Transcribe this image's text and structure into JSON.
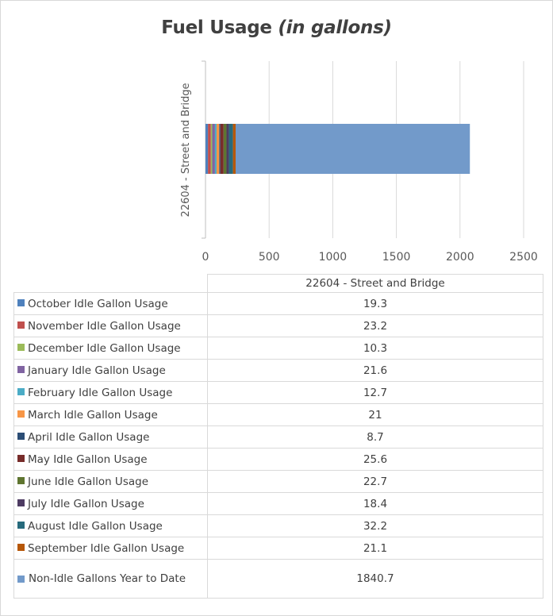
{
  "chart_data": {
    "type": "bar",
    "orientation": "horizontal",
    "stacked": true,
    "title": "Fuel Usage",
    "title_suffix": "(in gallons)",
    "categories": [
      "22604 - Street and Bridge"
    ],
    "xlim": [
      0,
      2500
    ],
    "xticks": [
      "0",
      "500",
      "1000",
      "1500",
      "2000",
      "2500"
    ],
    "grid": "vertical",
    "legend": "table-below",
    "series": [
      {
        "name": "October Idle Gallon Usage",
        "values": [
          19.3
        ],
        "value_label": "19.3",
        "color": "#4f81bd"
      },
      {
        "name": "November Idle Gallon Usage",
        "values": [
          23.2
        ],
        "value_label": "23.2",
        "color": "#c0504d"
      },
      {
        "name": "December Idle Gallon Usage",
        "values": [
          10.3
        ],
        "value_label": "10.3",
        "color": "#9bbb59"
      },
      {
        "name": "January Idle Gallon Usage",
        "values": [
          21.6
        ],
        "value_label": "21.6",
        "color": "#8064a2"
      },
      {
        "name": "February Idle Gallon Usage",
        "values": [
          12.7
        ],
        "value_label": "12.7",
        "color": "#4bacc6"
      },
      {
        "name": "March Idle Gallon Usage",
        "values": [
          21
        ],
        "value_label": "21",
        "color": "#f79646"
      },
      {
        "name": "April Idle Gallon Usage",
        "values": [
          8.7
        ],
        "value_label": "8.7",
        "color": "#2c4d75"
      },
      {
        "name": "May Idle Gallon Usage",
        "values": [
          25.6
        ],
        "value_label": "25.6",
        "color": "#772c2a"
      },
      {
        "name": "June Idle Gallon Usage",
        "values": [
          22.7
        ],
        "value_label": "22.7",
        "color": "#5f7530"
      },
      {
        "name": "July Idle Gallon Usage",
        "values": [
          18.4
        ],
        "value_label": "18.4",
        "color": "#4d3b62"
      },
      {
        "name": "August Idle Gallon Usage",
        "values": [
          32.2
        ],
        "value_label": "32.2",
        "color": "#276a7c"
      },
      {
        "name": "September Idle Gallon Usage",
        "values": [
          21.1
        ],
        "value_label": "21.1",
        "color": "#b65708"
      },
      {
        "name": "Non-Idle Gallons Year to Date",
        "values": [
          1840.7
        ],
        "value_label": "1840.7",
        "color": "#729aca"
      }
    ]
  }
}
